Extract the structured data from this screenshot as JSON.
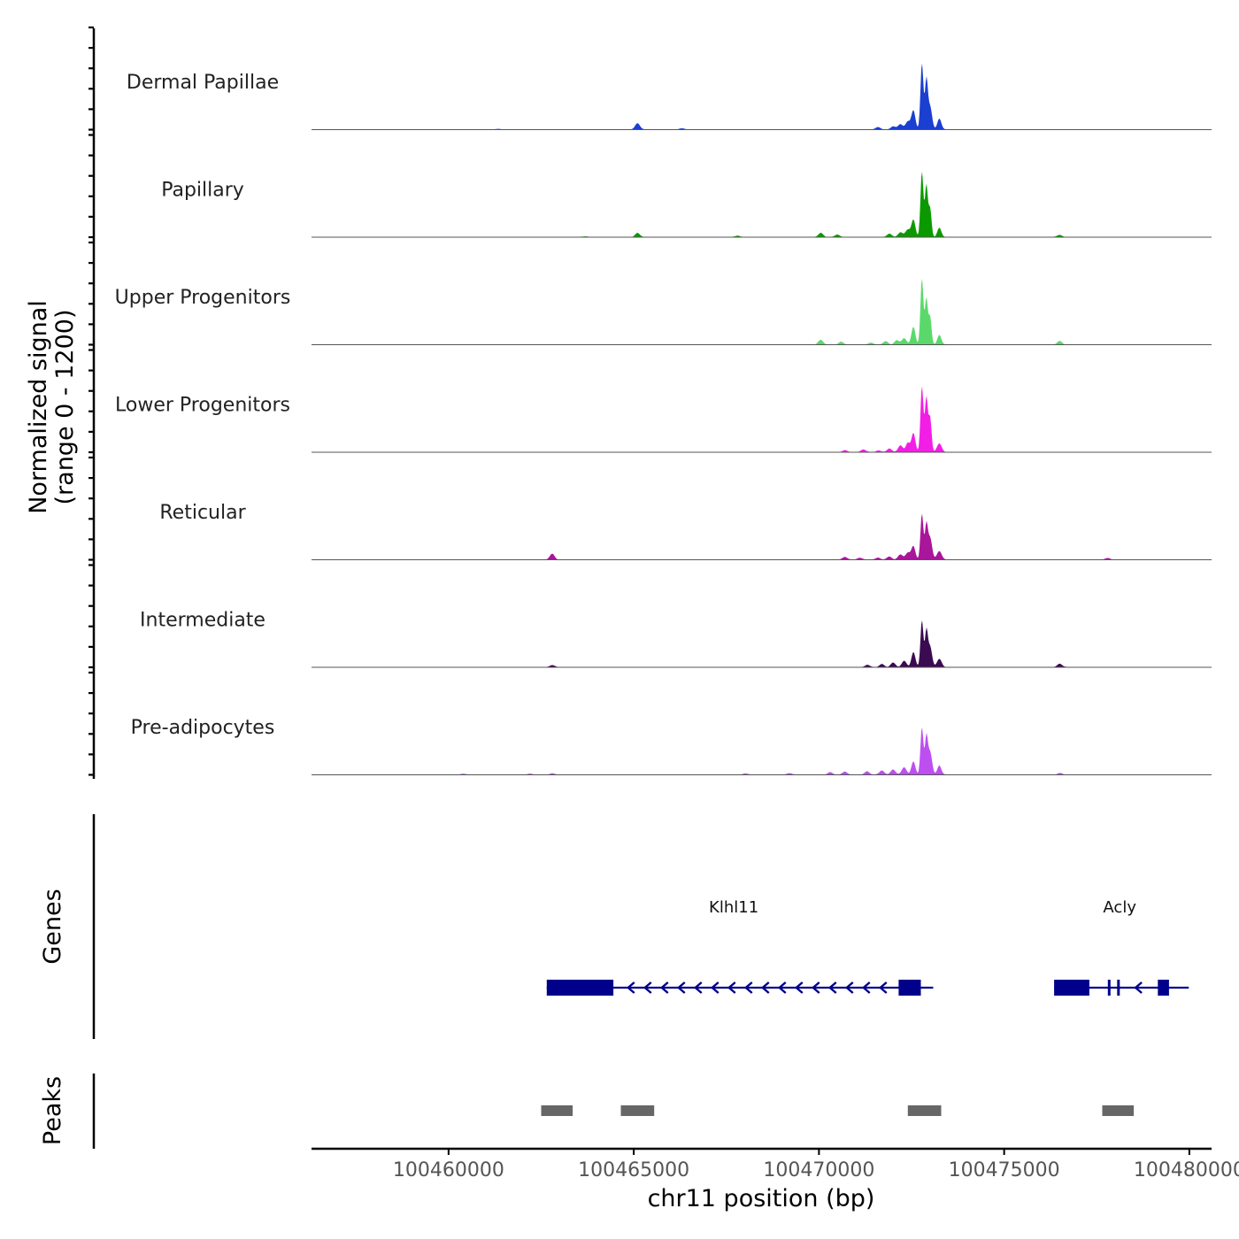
{
  "chart_data": {
    "type": "area",
    "title": "",
    "xlabel": "chr11 position (bp)",
    "ylabel_line1": "Normalized signal",
    "ylabel_line2": "(range 0 - 1200)",
    "ylim": [
      0,
      1200
    ],
    "xlim": [
      100456300,
      100480600
    ],
    "x_ticks": [
      100460000,
      100465000,
      100470000,
      100475000,
      100480000
    ],
    "x_tick_labels": [
      "100460000",
      "100465000",
      "100470000",
      "100475000",
      "100480000"
    ],
    "tracks": [
      {
        "name": "Dermal Papillae",
        "color": "#1a3fd1",
        "peaks": [
          [
            100461350,
            12
          ],
          [
            100463800,
            6
          ],
          [
            100465100,
            110
          ],
          [
            100466300,
            20
          ],
          [
            100471600,
            40
          ],
          [
            100472000,
            55
          ],
          [
            100472200,
            90
          ],
          [
            100472400,
            140
          ],
          [
            100472550,
            330
          ],
          [
            100472780,
            1150
          ],
          [
            100472900,
            850
          ],
          [
            100473000,
            400
          ],
          [
            100473250,
            190
          ]
        ]
      },
      {
        "name": "Papillary",
        "color": "#0a9a00",
        "peaks": [
          [
            100463700,
            12
          ],
          [
            100465100,
            70
          ],
          [
            100467800,
            25
          ],
          [
            100470050,
            70
          ],
          [
            100470500,
            40
          ],
          [
            100471900,
            60
          ],
          [
            100472200,
            80
          ],
          [
            100472400,
            130
          ],
          [
            100472550,
            300
          ],
          [
            100472780,
            1140
          ],
          [
            100472900,
            900
          ],
          [
            100473000,
            500
          ],
          [
            100473250,
            160
          ],
          [
            100476500,
            40
          ]
        ]
      },
      {
        "name": "Upper Progenitors",
        "color": "#5ad96a",
        "peaks": [
          [
            100470050,
            80
          ],
          [
            100470600,
            45
          ],
          [
            100471400,
            35
          ],
          [
            100471800,
            55
          ],
          [
            100472100,
            75
          ],
          [
            100472300,
            110
          ],
          [
            100472550,
            310
          ],
          [
            100472780,
            1150
          ],
          [
            100472900,
            800
          ],
          [
            100473000,
            480
          ],
          [
            100473250,
            170
          ],
          [
            100476500,
            60
          ]
        ]
      },
      {
        "name": "Lower Progenitors",
        "color": "#f21ee6",
        "peaks": [
          [
            100470700,
            30
          ],
          [
            100471200,
            45
          ],
          [
            100471600,
            30
          ],
          [
            100471900,
            60
          ],
          [
            100472200,
            120
          ],
          [
            100472400,
            160
          ],
          [
            100472550,
            330
          ],
          [
            100472780,
            1150
          ],
          [
            100472900,
            950
          ],
          [
            100473000,
            600
          ],
          [
            100473250,
            150
          ]
        ]
      },
      {
        "name": "Reticular",
        "color": "#a8169a",
        "peaks": [
          [
            100462800,
            100
          ],
          [
            100470700,
            45
          ],
          [
            100471100,
            35
          ],
          [
            100471600,
            35
          ],
          [
            100471900,
            50
          ],
          [
            100472200,
            90
          ],
          [
            100472400,
            120
          ],
          [
            100472550,
            230
          ],
          [
            100472780,
            800
          ],
          [
            100472900,
            600
          ],
          [
            100473000,
            380
          ],
          [
            100473250,
            150
          ],
          [
            100477800,
            25
          ]
        ]
      },
      {
        "name": "Intermediate",
        "color": "#3a0a52",
        "peaks": [
          [
            100462800,
            35
          ],
          [
            100471300,
            40
          ],
          [
            100471700,
            55
          ],
          [
            100472000,
            75
          ],
          [
            100472300,
            110
          ],
          [
            100472550,
            260
          ],
          [
            100472780,
            820
          ],
          [
            100472900,
            620
          ],
          [
            100473000,
            360
          ],
          [
            100473250,
            140
          ],
          [
            100476500,
            60
          ]
        ]
      },
      {
        "name": "Pre-adipocytes",
        "color": "#bd4ff0",
        "peaks": [
          [
            100460400,
            18
          ],
          [
            100462200,
            15
          ],
          [
            100462800,
            20
          ],
          [
            100468000,
            20
          ],
          [
            100469200,
            25
          ],
          [
            100470300,
            40
          ],
          [
            100470700,
            55
          ],
          [
            100471300,
            60
          ],
          [
            100471700,
            75
          ],
          [
            100472000,
            90
          ],
          [
            100472300,
            130
          ],
          [
            100472550,
            230
          ],
          [
            100472780,
            820
          ],
          [
            100472900,
            650
          ],
          [
            100473000,
            400
          ],
          [
            100473250,
            160
          ],
          [
            100476500,
            30
          ]
        ]
      }
    ],
    "genes_label": "Genes",
    "genes": [
      {
        "name": "Klhl11",
        "strand": "-",
        "start": 100462650,
        "end": 100472750,
        "exons": [
          [
            100462650,
            100464450
          ],
          [
            100472150,
            100472750
          ]
        ]
      },
      {
        "name": "Acly",
        "strand": "-",
        "start": 100476350,
        "end": 100479650,
        "exons": [
          [
            100476350,
            100477300
          ],
          [
            100477800,
            100477850
          ],
          [
            100478050,
            100478100
          ],
          [
            100479150,
            100479450
          ]
        ]
      }
    ],
    "peaks_label": "Peaks",
    "peak_regions": [
      [
        100462500,
        100463350
      ],
      [
        100464650,
        100465550
      ],
      [
        100472400,
        100473300
      ],
      [
        100477650,
        100478500
      ]
    ]
  }
}
